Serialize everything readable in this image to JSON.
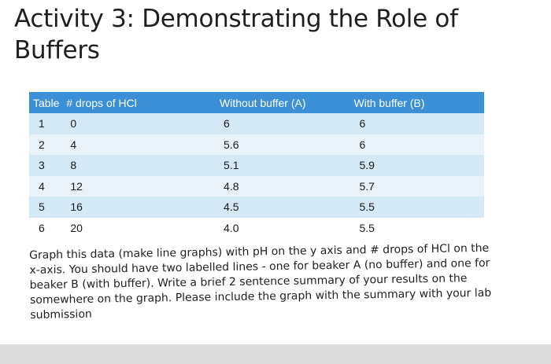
{
  "title": {
    "line1": "Activity 3: Demonstrating the Role of",
    "line2": "Buffers"
  },
  "table": {
    "headers": [
      "Table",
      "# drops of HCl",
      "Without buffer (A)",
      "With buffer (B)"
    ],
    "rows": [
      [
        "1",
        "0",
        "6",
        "6"
      ],
      [
        "2",
        "4",
        "5.6",
        "6"
      ],
      [
        "3",
        "8",
        "5.1",
        "5.9"
      ],
      [
        "4",
        "12",
        "4.8",
        "5.7"
      ],
      [
        "5",
        "16",
        "4.5",
        "5.5"
      ],
      [
        "6",
        "20",
        "4.0",
        "5.5"
      ]
    ]
  },
  "instructions": {
    "lines": [
      "Graph this data (make line graphs) with pH on the y axis and # drops of HCl on the",
      "x-axis. You should have two labelled lines - one for beaker A (no buffer) and one for",
      "beaker B (with buffer). Write a brief 2 sentence summary of your results on the",
      "somewhere on the graph. Please include the graph with the summary with your lab",
      "submission"
    ]
  },
  "colors": {
    "header_bg": "#3b8fd6",
    "row_dark": "#d5e8f5",
    "row_light": "#eaf2f9"
  }
}
